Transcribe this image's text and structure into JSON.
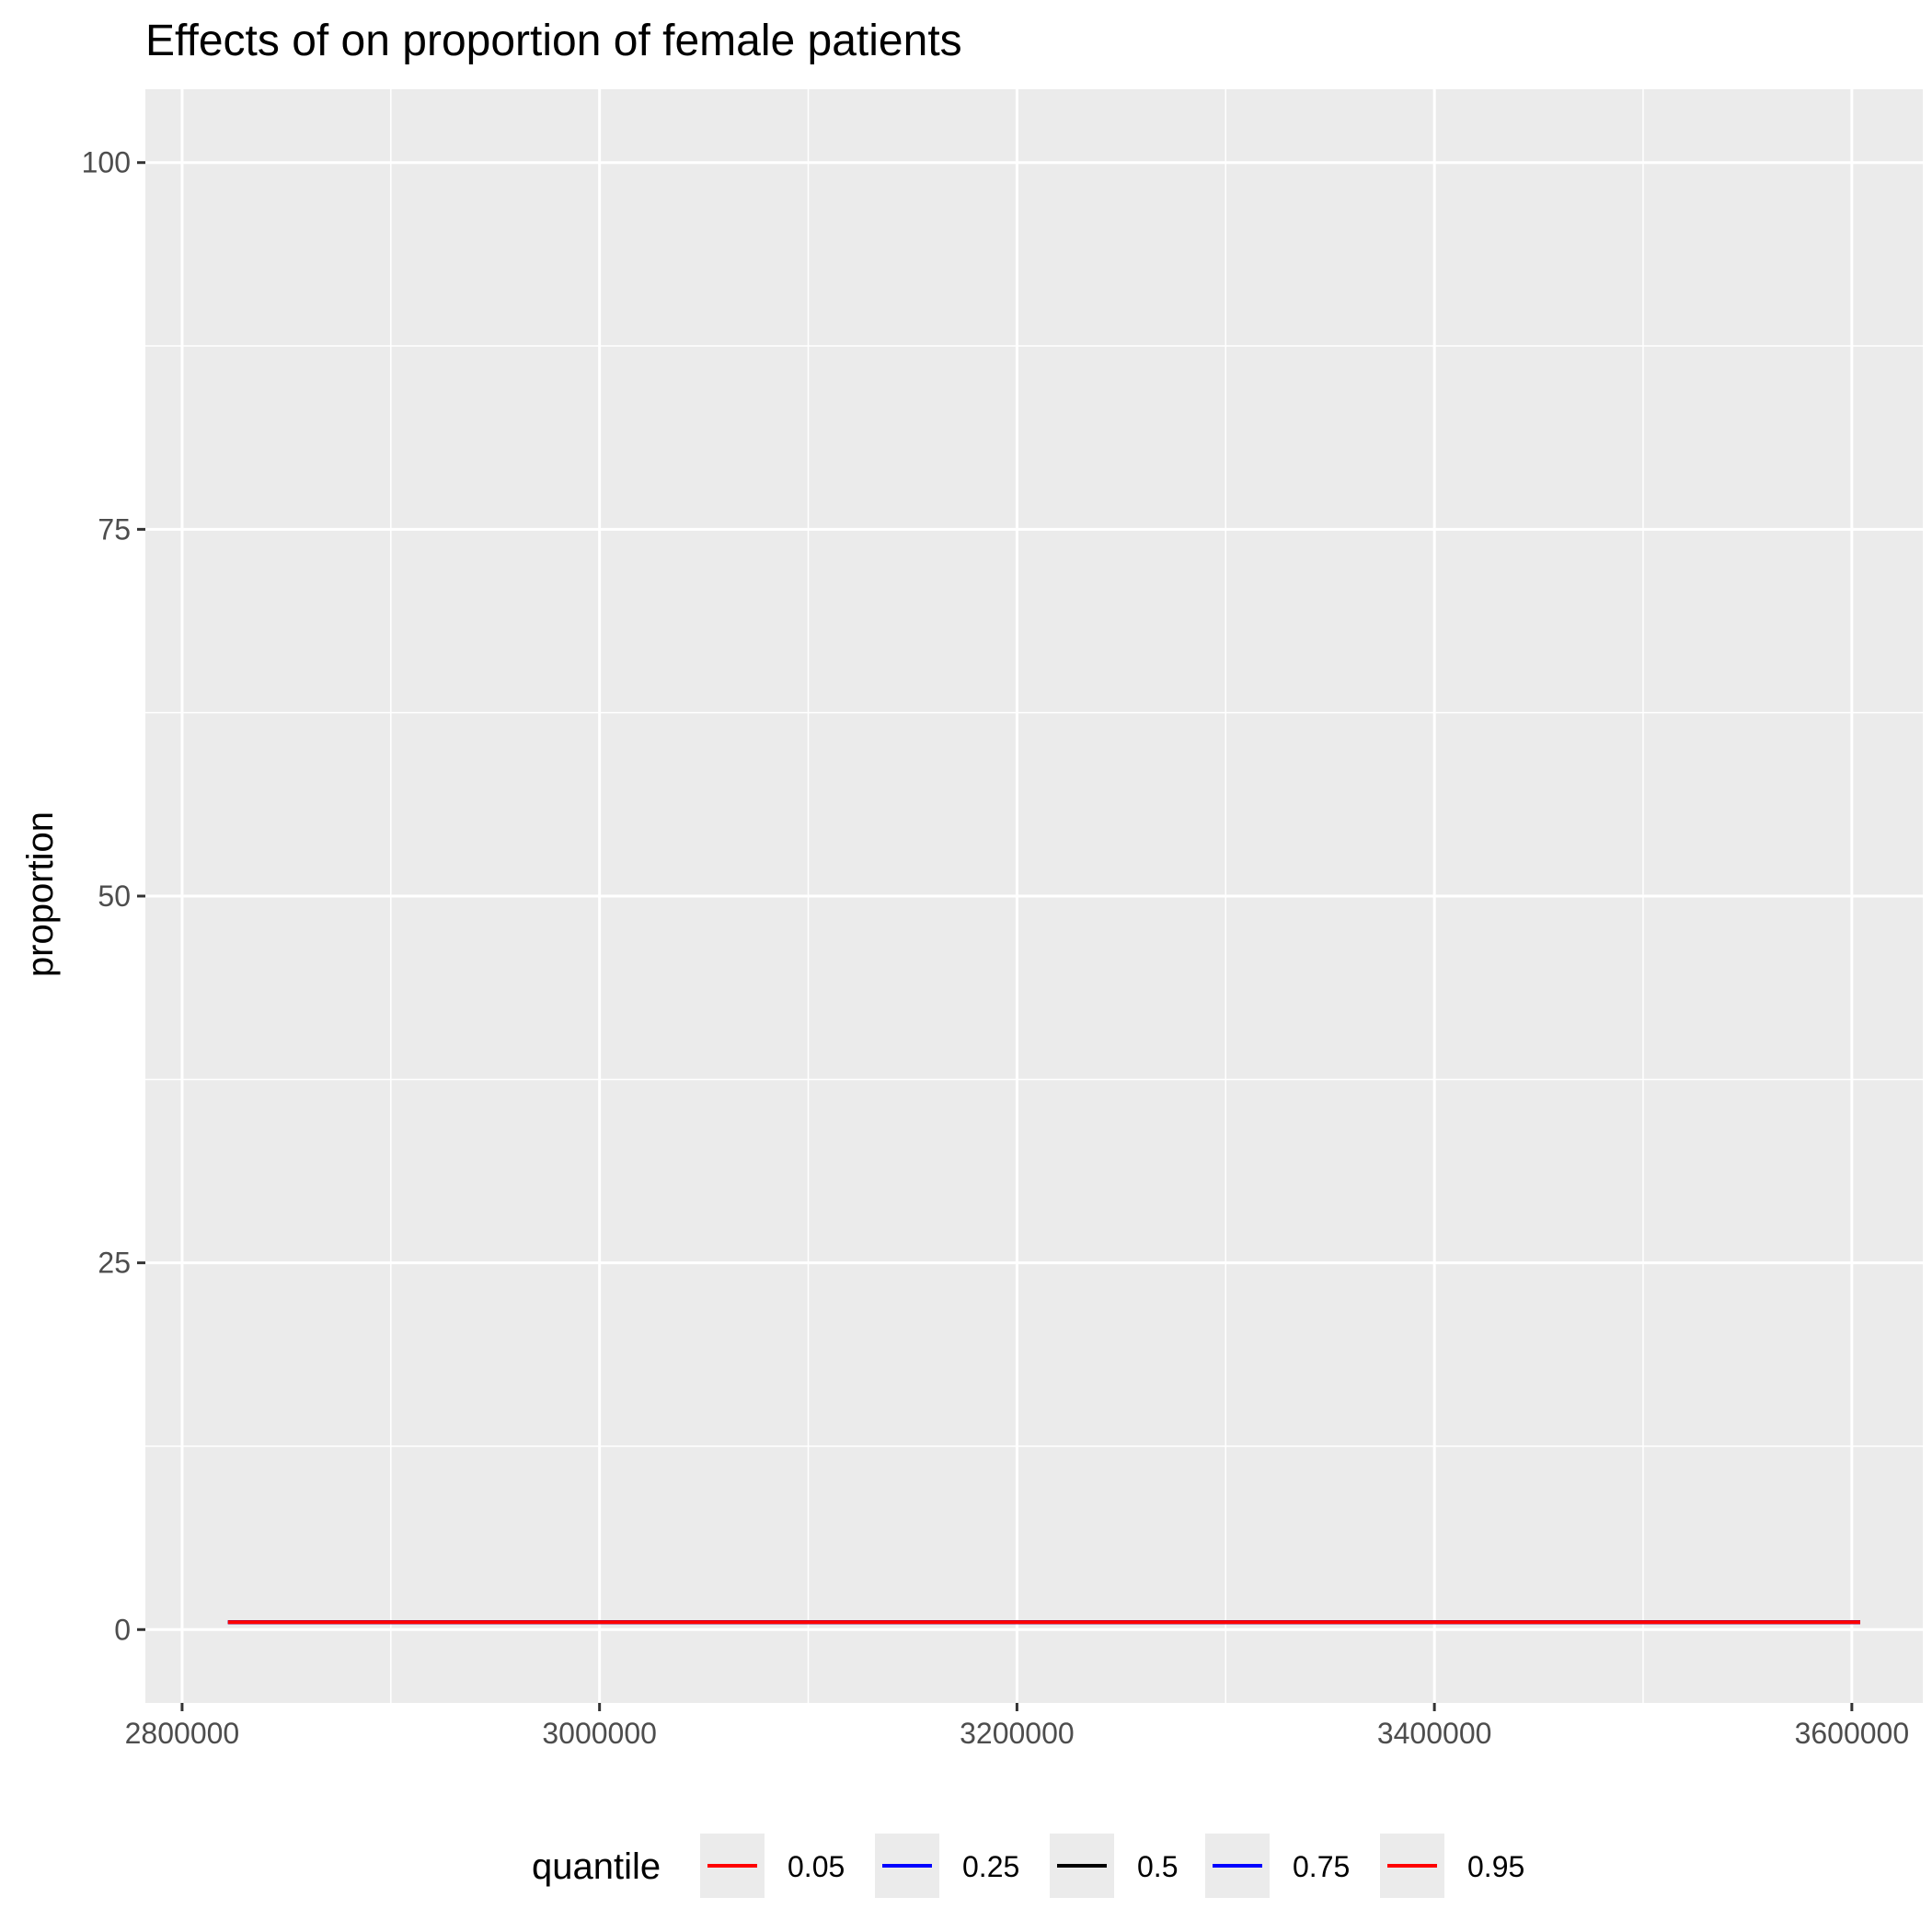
{
  "chart_data": {
    "type": "line",
    "title": "Effects of  on proportion of female patients",
    "xlabel": "",
    "ylabel": "proportion",
    "xlim": [
      2782400,
      3634000
    ],
    "ylim": [
      -5,
      105
    ],
    "x_ticks": [
      2800000,
      3000000,
      3200000,
      3400000,
      3600000
    ],
    "x_tick_labels": [
      "2800000",
      "3000000",
      "3200000",
      "3400000",
      "3600000"
    ],
    "y_ticks": [
      0,
      25,
      50,
      75,
      100
    ],
    "y_tick_labels": [
      "0",
      "25",
      "50",
      "75",
      "100"
    ],
    "grid": true,
    "legend": {
      "position": "bottom",
      "title": "quantile"
    },
    "series": [
      {
        "name": "0.05",
        "color": "#ff0000",
        "x": [
          2822000,
          3604000
        ],
        "y": [
          0.5,
          0.5
        ]
      },
      {
        "name": "0.25",
        "color": "#0000ff",
        "x": [
          2822000,
          3604000
        ],
        "y": [
          0.5,
          0.5
        ]
      },
      {
        "name": "0.5",
        "color": "#000000",
        "x": [
          2822000,
          3604000
        ],
        "y": [
          0.5,
          0.5
        ]
      },
      {
        "name": "0.75",
        "color": "#0000ff",
        "x": [
          2822000,
          3604000
        ],
        "y": [
          0.5,
          0.5
        ]
      },
      {
        "name": "0.95",
        "color": "#ff0000",
        "x": [
          2822000,
          3604000
        ],
        "y": [
          0.5,
          0.5
        ]
      }
    ],
    "colors": {
      "panel_background": "#ebebeb",
      "grid_line": "#ffffff",
      "tick_mark": "#333333",
      "tick_text": "#4d4d4d"
    }
  }
}
